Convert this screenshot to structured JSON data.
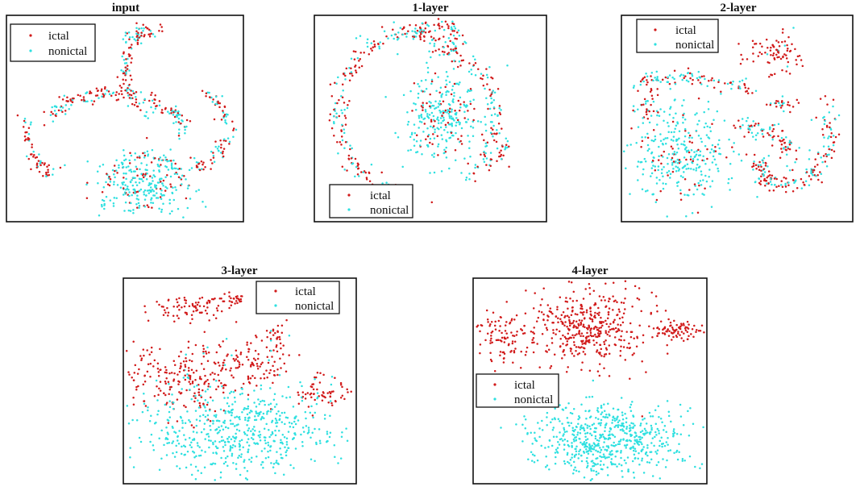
{
  "figure": {
    "colors": {
      "ictal": "#d11a1a",
      "nonictal": "#2ee0e0",
      "frame": "#111111"
    }
  },
  "chart_data": [
    {
      "type": "scatter",
      "title": "input",
      "legend": {
        "placement": "top-left",
        "entries": [
          "ictal",
          "nonictal"
        ]
      },
      "grid": false,
      "series": [
        {
          "name": "ictal",
          "color": "#d11a1a"
        },
        {
          "name": "nonictal",
          "color": "#2ee0e0"
        }
      ]
    },
    {
      "type": "scatter",
      "title": "1-layer",
      "legend": {
        "placement": "bottom-left",
        "entries": [
          "ictal",
          "nonictal"
        ]
      },
      "grid": false,
      "series": [
        {
          "name": "ictal",
          "color": "#d11a1a"
        },
        {
          "name": "nonictal",
          "color": "#2ee0e0"
        }
      ]
    },
    {
      "type": "scatter",
      "title": "2-layer",
      "legend": {
        "placement": "top-left",
        "entries": [
          "ictal",
          "nonictal"
        ]
      },
      "grid": false,
      "series": [
        {
          "name": "ictal",
          "color": "#d11a1a"
        },
        {
          "name": "nonictal",
          "color": "#2ee0e0"
        }
      ]
    },
    {
      "type": "scatter",
      "title": "3-layer",
      "legend": {
        "placement": "top-right",
        "entries": [
          "ictal",
          "nonictal"
        ]
      },
      "grid": false,
      "series": [
        {
          "name": "ictal",
          "color": "#d11a1a"
        },
        {
          "name": "nonictal",
          "color": "#2ee0e0"
        }
      ]
    },
    {
      "type": "scatter",
      "title": "4-layer",
      "legend": {
        "placement": "center-left",
        "entries": [
          "ictal",
          "nonictal"
        ]
      },
      "grid": false,
      "series": [
        {
          "name": "ictal",
          "color": "#d11a1a"
        },
        {
          "name": "nonictal",
          "color": "#2ee0e0"
        }
      ]
    }
  ]
}
